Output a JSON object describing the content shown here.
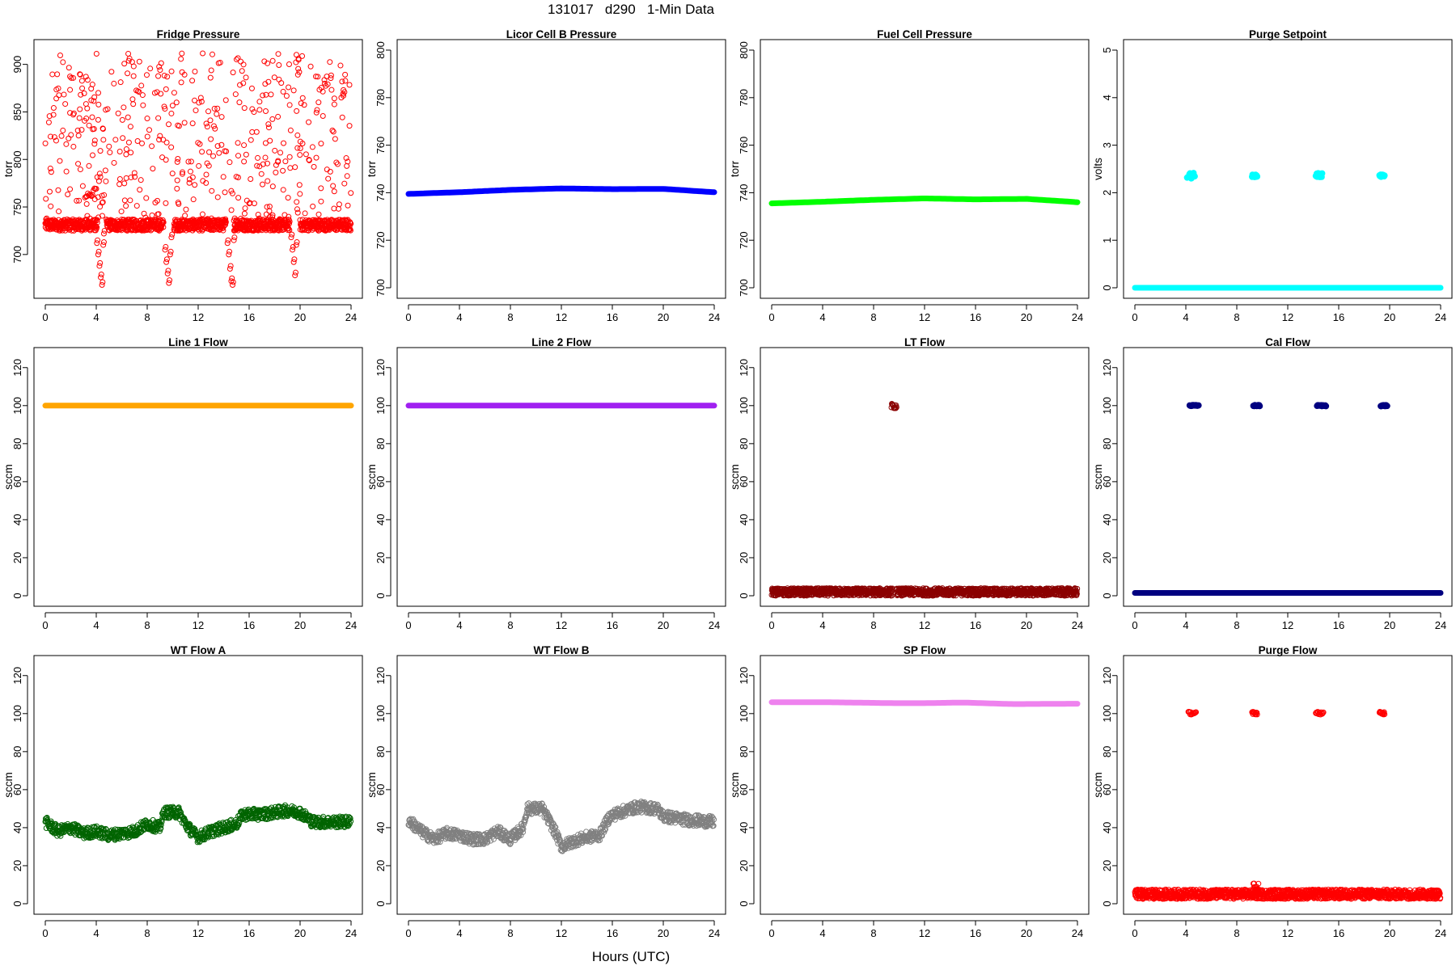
{
  "page": {
    "title": "131017   d290   1-Min Data",
    "x_axis_label": "Hours (UTC)"
  },
  "chart_data": [
    {
      "id": "fridge-pressure",
      "type": "scatter",
      "title": "Fridge Pressure",
      "ylabel": "torr",
      "xlim": [
        0,
        24
      ],
      "ylim": [
        665,
        915
      ],
      "xticks": [
        0,
        4,
        8,
        12,
        16,
        20,
        24
      ],
      "yticks": [
        700,
        750,
        800,
        850,
        900
      ],
      "color": "#ff0000",
      "marker": "open-circle",
      "series": [
        {
          "pattern": "noise",
          "base": 731,
          "amp": 6,
          "segments": [
            [
              0,
              4.1
            ],
            [
              4.8,
              9.3
            ],
            [
              10.1,
              14.2
            ],
            [
              14.8,
              19.2
            ],
            [
              20,
              24
            ]
          ]
        },
        {
          "pattern": "scatter",
          "ymin": 735,
          "ymax": 912,
          "count": 480
        },
        {
          "pattern": "dip",
          "points": [
            [
              4.05,
              712
            ],
            [
              4.15,
              700
            ],
            [
              4.25,
              688
            ],
            [
              4.35,
              676
            ],
            [
              4.45,
              668
            ],
            [
              4.55,
              710
            ],
            [
              4.6,
              722
            ]
          ]
        },
        {
          "pattern": "dip",
          "points": [
            [
              9.4,
              705
            ],
            [
              9.5,
              692
            ],
            [
              9.6,
              680
            ],
            [
              9.7,
              670
            ],
            [
              9.8,
              700
            ],
            [
              9.9,
              718
            ]
          ]
        },
        {
          "pattern": "dip",
          "points": [
            [
              14.3,
              712
            ],
            [
              14.4,
              700
            ],
            [
              14.5,
              685
            ],
            [
              14.6,
              672
            ],
            [
              14.7,
              668
            ],
            [
              14.8,
              715
            ]
          ]
        },
        {
          "pattern": "dip",
          "points": [
            [
              19.3,
              718
            ],
            [
              19.4,
              705
            ],
            [
              19.5,
              692
            ],
            [
              19.6,
              678
            ],
            [
              19.7,
              710
            ]
          ]
        },
        {
          "pattern": "scatter-line",
          "from": [
            4.0,
            768
          ],
          "to": [
            3.2,
            760
          ],
          "count": 12
        }
      ]
    },
    {
      "id": "licor-cell-b-pressure",
      "type": "line",
      "title": "Licor Cell B Pressure",
      "ylabel": "torr",
      "xlim": [
        0,
        24
      ],
      "ylim": [
        700,
        800
      ],
      "xticks": [
        0,
        4,
        8,
        12,
        16,
        20,
        24
      ],
      "yticks": [
        700,
        720,
        740,
        760,
        780,
        800
      ],
      "color": "#0000ff",
      "marker": "thick-line",
      "series": [
        {
          "pattern": "curve",
          "points": [
            [
              0,
              739.5
            ],
            [
              4,
              740.2
            ],
            [
              8,
              741.2
            ],
            [
              12,
              741.8
            ],
            [
              16,
              741.5
            ],
            [
              20,
              741.6
            ],
            [
              24,
              740.2
            ]
          ]
        }
      ]
    },
    {
      "id": "fuel-cell-pressure",
      "type": "line",
      "title": "Fuel Cell Pressure",
      "ylabel": "torr",
      "xlim": [
        0,
        24
      ],
      "ylim": [
        700,
        800
      ],
      "xticks": [
        0,
        4,
        8,
        12,
        16,
        20,
        24
      ],
      "yticks": [
        700,
        720,
        740,
        760,
        780,
        800
      ],
      "color": "#00ff00",
      "marker": "thick-line",
      "series": [
        {
          "pattern": "curve",
          "points": [
            [
              0,
              735.5
            ],
            [
              4,
              736.2
            ],
            [
              8,
              737
            ],
            [
              12,
              737.6
            ],
            [
              16,
              737.2
            ],
            [
              20,
              737.4
            ],
            [
              24,
              736
            ]
          ]
        }
      ]
    },
    {
      "id": "purge-setpoint",
      "type": "scatter",
      "title": "Purge Setpoint",
      "ylabel": "volts",
      "xlim": [
        0,
        24
      ],
      "ylim": [
        0,
        5
      ],
      "xticks": [
        0,
        4,
        8,
        12,
        16,
        20,
        24
      ],
      "yticks": [
        0,
        1,
        2,
        3,
        4,
        5
      ],
      "color": "#00ffff",
      "marker": "thick-line",
      "series": [
        {
          "pattern": "curve",
          "points": [
            [
              0,
              0
            ],
            [
              24,
              0
            ]
          ]
        },
        {
          "pattern": "cluster",
          "x": [
            4.1,
            4.7
          ],
          "y": [
            2.3,
            2.42
          ]
        },
        {
          "pattern": "cluster",
          "x": [
            9.2,
            9.6
          ],
          "y": [
            2.33,
            2.38
          ]
        },
        {
          "pattern": "cluster",
          "x": [
            14.2,
            14.7
          ],
          "y": [
            2.32,
            2.42
          ]
        },
        {
          "pattern": "cluster",
          "x": [
            19.2,
            19.6
          ],
          "y": [
            2.33,
            2.38
          ]
        }
      ]
    },
    {
      "id": "line-1-flow",
      "type": "line",
      "title": "Line 1 Flow",
      "ylabel": "sccm",
      "xlim": [
        0,
        24
      ],
      "ylim": [
        0,
        125
      ],
      "xticks": [
        0,
        4,
        8,
        12,
        16,
        20,
        24
      ],
      "yticks": [
        0,
        20,
        40,
        60,
        80,
        100,
        120
      ],
      "color": "#ffa500",
      "marker": "thick-line",
      "series": [
        {
          "pattern": "curve",
          "points": [
            [
              0,
              100
            ],
            [
              24,
              100
            ]
          ]
        }
      ]
    },
    {
      "id": "line-2-flow",
      "type": "line",
      "title": "Line 2 Flow",
      "ylabel": "sccm",
      "xlim": [
        0,
        24
      ],
      "ylim": [
        0,
        125
      ],
      "xticks": [
        0,
        4,
        8,
        12,
        16,
        20,
        24
      ],
      "yticks": [
        0,
        20,
        40,
        60,
        80,
        100,
        120
      ],
      "color": "#a020f0",
      "marker": "thick-line",
      "series": [
        {
          "pattern": "curve",
          "points": [
            [
              0,
              100
            ],
            [
              24,
              100
            ]
          ]
        }
      ]
    },
    {
      "id": "lt-flow",
      "type": "scatter",
      "title": "LT Flow",
      "ylabel": "sccm",
      "xlim": [
        0,
        24
      ],
      "ylim": [
        0,
        125
      ],
      "xticks": [
        0,
        4,
        8,
        12,
        16,
        20,
        24
      ],
      "yticks": [
        0,
        20,
        40,
        60,
        80,
        100,
        120
      ],
      "color": "#8b0000",
      "marker": "open-circle",
      "series": [
        {
          "pattern": "noise",
          "base": 2,
          "amp": 2,
          "segments": [
            [
              0,
              9.5
            ],
            [
              9.8,
              24
            ]
          ]
        },
        {
          "pattern": "cluster",
          "x": [
            9.4,
            9.8
          ],
          "y": [
            98.5,
            101
          ]
        }
      ]
    },
    {
      "id": "cal-flow",
      "type": "scatter",
      "title": "Cal Flow",
      "ylabel": "sccm",
      "xlim": [
        0,
        24
      ],
      "ylim": [
        0,
        125
      ],
      "xticks": [
        0,
        4,
        8,
        12,
        16,
        20,
        24
      ],
      "yticks": [
        0,
        20,
        40,
        60,
        80,
        100,
        120
      ],
      "color": "#000080",
      "marker": "thick-line",
      "series": [
        {
          "pattern": "curve",
          "points": [
            [
              0,
              1.5
            ],
            [
              24,
              1.5
            ]
          ]
        },
        {
          "pattern": "cluster",
          "x": [
            4.3,
            5.0
          ],
          "y": [
            99.7,
            100.3
          ]
        },
        {
          "pattern": "cluster",
          "x": [
            9.3,
            9.8
          ],
          "y": [
            99.7,
            100.3
          ]
        },
        {
          "pattern": "cluster",
          "x": [
            14.3,
            15.0
          ],
          "y": [
            99.7,
            100.3
          ]
        },
        {
          "pattern": "cluster",
          "x": [
            19.3,
            19.8
          ],
          "y": [
            99.7,
            100.3
          ]
        }
      ]
    },
    {
      "id": "wt-flow-a",
      "type": "scatter",
      "title": "WT Flow A",
      "ylabel": "sccm",
      "xlim": [
        0,
        24
      ],
      "ylim": [
        0,
        125
      ],
      "xticks": [
        0,
        4,
        8,
        12,
        16,
        20,
        24
      ],
      "yticks": [
        0,
        20,
        40,
        60,
        80,
        100,
        120
      ],
      "color": "#006400",
      "marker": "open-circle",
      "series": [
        {
          "pattern": "wander",
          "amp": 3,
          "points": [
            [
              0,
              43
            ],
            [
              1,
              38
            ],
            [
              2,
              40
            ],
            [
              3,
              37
            ],
            [
              4,
              38
            ],
            [
              5,
              36
            ],
            [
              6,
              37
            ],
            [
              7,
              38
            ],
            [
              8,
              42
            ],
            [
              9,
              40
            ],
            [
              9.3,
              48
            ],
            [
              10.5,
              48
            ],
            [
              11,
              42
            ],
            [
              11.5,
              38
            ],
            [
              12,
              35
            ],
            [
              13,
              38
            ],
            [
              14,
              40
            ],
            [
              15,
              42
            ],
            [
              15.5,
              47
            ],
            [
              17,
              47
            ],
            [
              18,
              48
            ],
            [
              19,
              49
            ],
            [
              20,
              48
            ],
            [
              21,
              43
            ],
            [
              23,
              43
            ],
            [
              24,
              43
            ]
          ]
        }
      ]
    },
    {
      "id": "wt-flow-b",
      "type": "scatter",
      "title": "WT Flow B",
      "ylabel": "sccm",
      "xlim": [
        0,
        24
      ],
      "ylim": [
        0,
        125
      ],
      "xticks": [
        0,
        4,
        8,
        12,
        16,
        20,
        24
      ],
      "yticks": [
        0,
        20,
        40,
        60,
        80,
        100,
        120
      ],
      "color": "#808080",
      "marker": "open-circle",
      "series": [
        {
          "pattern": "wander",
          "amp": 3,
          "points": [
            [
              0,
              44
            ],
            [
              1,
              38
            ],
            [
              2,
              34
            ],
            [
              3,
              37
            ],
            [
              4,
              36
            ],
            [
              5,
              34
            ],
            [
              6,
              34
            ],
            [
              7,
              38
            ],
            [
              8,
              34
            ],
            [
              9,
              40
            ],
            [
              9.3,
              50
            ],
            [
              10.5,
              50
            ],
            [
              11,
              44
            ],
            [
              11.5,
              38
            ],
            [
              12,
              30
            ],
            [
              13,
              33
            ],
            [
              14,
              35
            ],
            [
              15,
              36
            ],
            [
              15.8,
              46
            ],
            [
              17,
              49
            ],
            [
              18,
              51
            ],
            [
              19.5,
              50
            ],
            [
              20,
              46
            ],
            [
              22,
              44
            ],
            [
              24,
              43
            ]
          ]
        }
      ]
    },
    {
      "id": "sp-flow",
      "type": "line",
      "title": "SP Flow",
      "ylabel": "sccm",
      "xlim": [
        0,
        24
      ],
      "ylim": [
        0,
        125
      ],
      "xticks": [
        0,
        4,
        8,
        12,
        16,
        20,
        24
      ],
      "yticks": [
        0,
        20,
        40,
        60,
        80,
        100,
        120
      ],
      "color": "#ee82ee",
      "marker": "thick-line",
      "series": [
        {
          "pattern": "curve",
          "points": [
            [
              0,
              106
            ],
            [
              4,
              106
            ],
            [
              9.6,
              105.5
            ],
            [
              12,
              105.5
            ],
            [
              15,
              105.8
            ],
            [
              19,
              105
            ],
            [
              24,
              105.2
            ]
          ]
        }
      ]
    },
    {
      "id": "purge-flow",
      "type": "scatter",
      "title": "Purge Flow",
      "ylabel": "sccm",
      "xlim": [
        0,
        24
      ],
      "ylim": [
        0,
        125
      ],
      "xticks": [
        0,
        4,
        8,
        12,
        16,
        20,
        24
      ],
      "yticks": [
        0,
        20,
        40,
        60,
        80,
        100,
        120
      ],
      "color": "#ff0000",
      "marker": "open-circle",
      "series": [
        {
          "pattern": "noise",
          "base": 5,
          "amp": 2.5,
          "segments": [
            [
              0,
              24
            ]
          ]
        },
        {
          "pattern": "cluster",
          "x": [
            9.3,
            9.7
          ],
          "y": [
            5,
            11
          ]
        },
        {
          "pattern": "cluster",
          "x": [
            4.2,
            4.8
          ],
          "y": [
            99.5,
            101
          ]
        },
        {
          "pattern": "cluster",
          "x": [
            9.2,
            9.6
          ],
          "y": [
            99.5,
            101
          ]
        },
        {
          "pattern": "cluster",
          "x": [
            14.2,
            14.8
          ],
          "y": [
            99.5,
            101
          ]
        },
        {
          "pattern": "cluster",
          "x": [
            19.2,
            19.6
          ],
          "y": [
            99.5,
            101
          ]
        }
      ]
    }
  ]
}
